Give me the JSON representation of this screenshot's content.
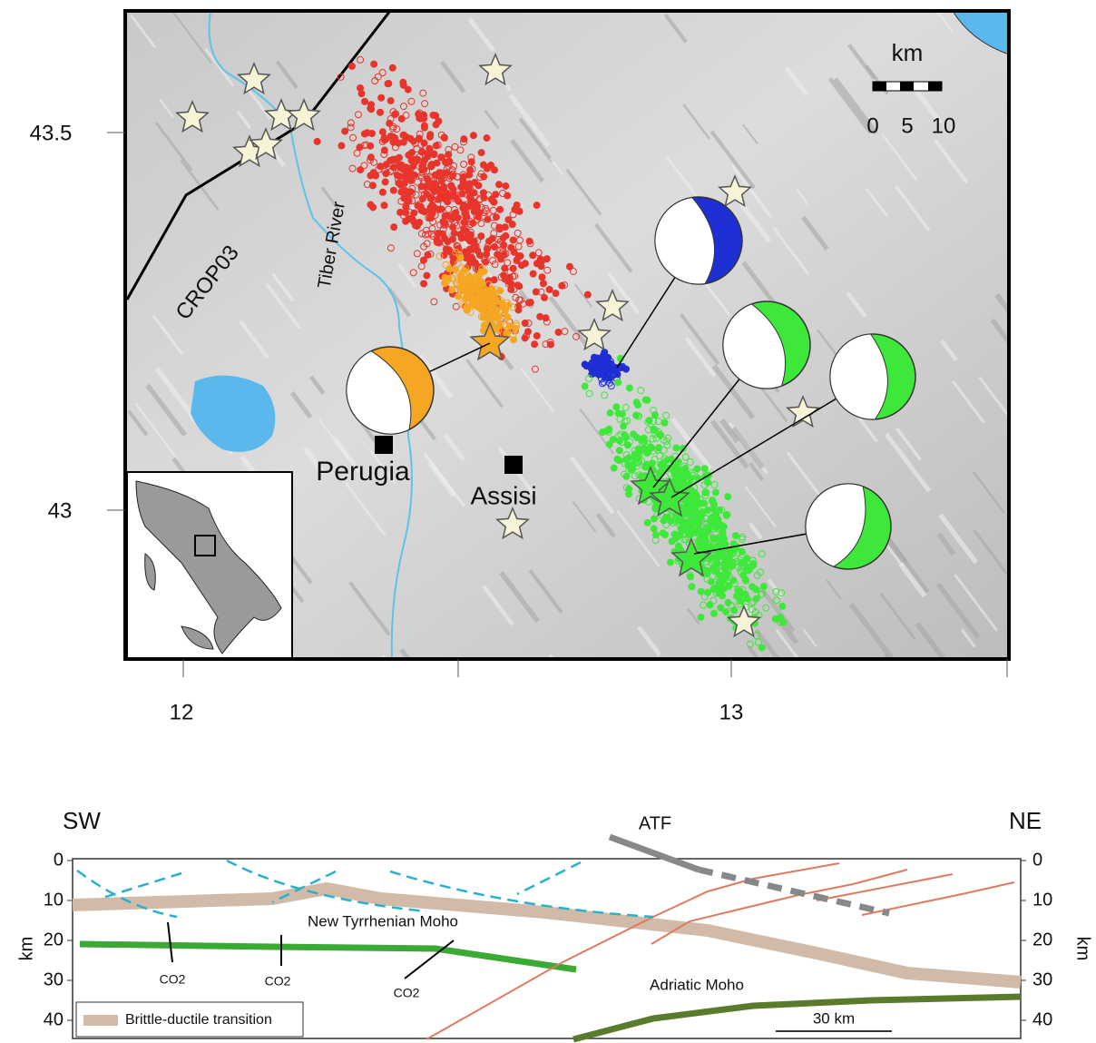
{
  "map": {
    "lat_labels": [
      "43.5",
      "43"
    ],
    "lon_labels": [
      "12",
      "13"
    ],
    "scale": {
      "unit": "km",
      "labels": [
        "0",
        "5",
        "10"
      ]
    },
    "labels": {
      "crop": "CROP03",
      "river": "Tiber River",
      "perugia": "Perugia",
      "assisi": "Assisi"
    }
  },
  "section": {
    "left": "SW",
    "right": "NE",
    "fault": "ATF",
    "depth_ticks": [
      0,
      10,
      20,
      30,
      40
    ],
    "depth_unit": "km",
    "moho_tyrrhenian": "New Tyrrhenian Moho",
    "moho_adriatic": "Adriatic Moho",
    "co2": [
      "CO2",
      "CO2",
      "CO2"
    ],
    "legend": "Brittle-ductile transition",
    "scale_bar": "30 km"
  }
}
